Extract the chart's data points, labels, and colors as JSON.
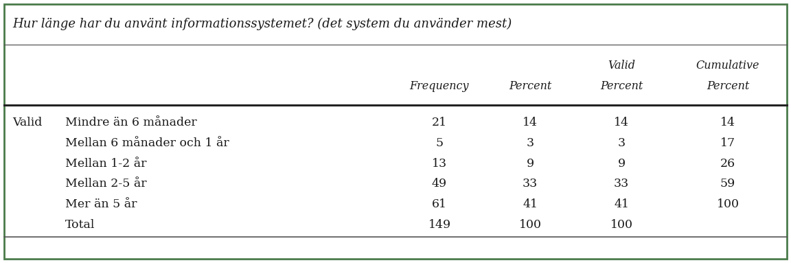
{
  "title": "Hur länge har du använt informationssystemet? (det system du använder mest)",
  "row_label": "Valid",
  "rows": [
    {
      "label": "Mindre än 6 månader",
      "frequency": "21",
      "percent": "14",
      "valid_percent": "14",
      "cumulative": "14"
    },
    {
      "label": "Mellan 6 månader och 1 år",
      "frequency": "5",
      "percent": "3",
      "valid_percent": "3",
      "cumulative": "17"
    },
    {
      "label": "Mellan 1-2 år",
      "frequency": "13",
      "percent": "9",
      "valid_percent": "9",
      "cumulative": "26"
    },
    {
      "label": "Mellan 2-5 år",
      "frequency": "49",
      "percent": "33",
      "valid_percent": "33",
      "cumulative": "59"
    },
    {
      "label": "Mer än 5 år",
      "frequency": "61",
      "percent": "41",
      "valid_percent": "41",
      "cumulative": "100"
    },
    {
      "label": "Total",
      "frequency": "149",
      "percent": "100",
      "valid_percent": "100",
      "cumulative": ""
    }
  ],
  "background_color": "#ffffff",
  "border_color": "#4a7a4a",
  "text_color": "#1a1a1a",
  "font_size_title": 13.0,
  "font_size_header": 11.5,
  "font_size_body": 12.5
}
